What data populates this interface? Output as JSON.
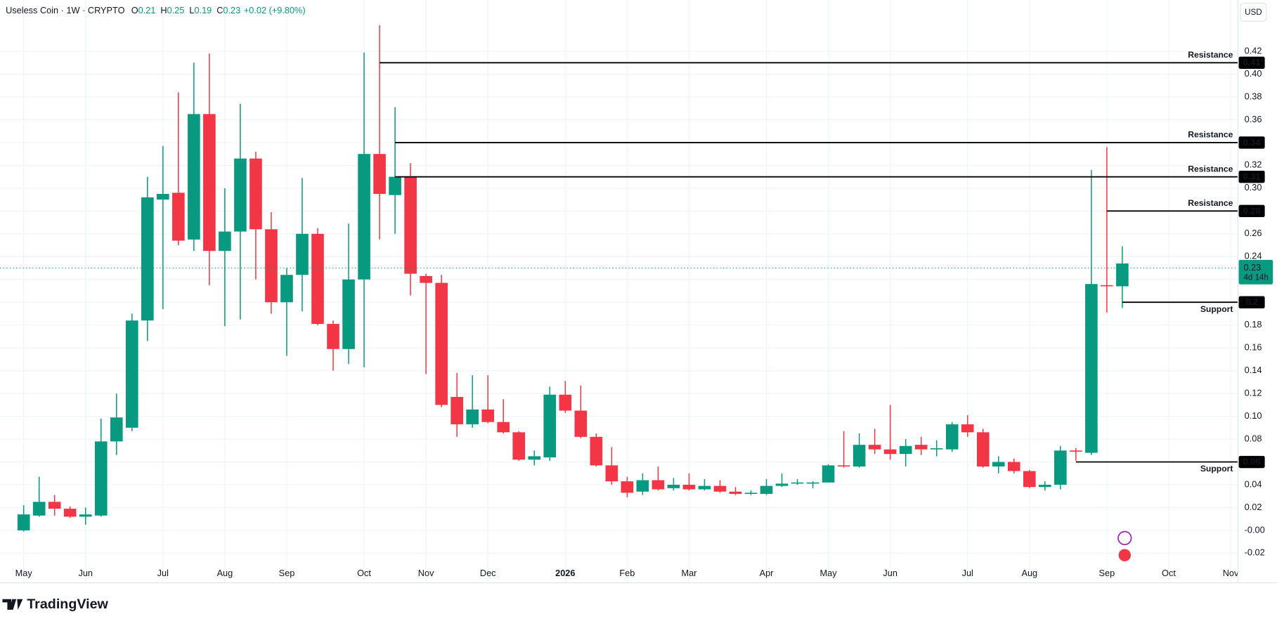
{
  "chart_data": {
    "type": "candlestick",
    "title": "Useless Coin · 1W · CRYPTO",
    "ohlc_legend": [
      {
        "label": "O",
        "value": 0.21
      },
      {
        "label": "H",
        "value": 0.25
      },
      {
        "label": "L",
        "value": 0.19
      },
      {
        "label": "C",
        "value": 0.23
      }
    ],
    "change": "+0.02 (+9.80%)",
    "currency": "USD",
    "brand": "TradingView",
    "up_color": "#089981",
    "down_color": "#f23645",
    "x": [
      0,
      1,
      2,
      3,
      4,
      5,
      6,
      7,
      8,
      9,
      10,
      11,
      12,
      13,
      14,
      15,
      16,
      17,
      18,
      19,
      20,
      21,
      22,
      23,
      24,
      25,
      26,
      27,
      28,
      29,
      30,
      31,
      32,
      33,
      34,
      35,
      36,
      37,
      38,
      39,
      40,
      41,
      42,
      43,
      44,
      45,
      46,
      47,
      48,
      49,
      50,
      51,
      52,
      53,
      54,
      55,
      56,
      57,
      58,
      59,
      60,
      61,
      62,
      63,
      64,
      65,
      66,
      67,
      68,
      69,
      70,
      71
    ],
    "open": [
      0.0,
      0.013,
      0.025,
      0.019,
      0.012,
      0.013,
      0.078,
      0.09,
      0.184,
      0.29,
      0.296,
      0.255,
      0.365,
      0.245,
      0.262,
      0.326,
      0.264,
      0.2,
      0.224,
      0.26,
      0.181,
      0.159,
      0.22,
      0.33,
      0.294,
      0.31,
      0.223,
      0.217,
      0.117,
      0.093,
      0.106,
      0.095,
      0.086,
      0.062,
      0.064,
      0.119,
      0.105,
      0.082,
      0.057,
      0.043,
      0.034,
      0.044,
      0.037,
      0.04,
      0.036,
      0.039,
      0.034,
      0.032,
      0.032,
      0.039,
      0.041,
      0.041,
      0.042,
      0.057,
      0.056,
      0.075,
      0.071,
      0.067,
      0.075,
      0.071,
      0.071,
      0.093,
      0.086,
      0.056,
      0.06,
      0.052,
      0.038,
      0.04,
      0.07,
      0.068,
      0.215,
      0.214
    ],
    "high": [
      0.022,
      0.047,
      0.031,
      0.021,
      0.02,
      0.098,
      0.12,
      0.19,
      0.31,
      0.337,
      0.384,
      0.41,
      0.418,
      0.3,
      0.374,
      0.332,
      0.279,
      0.23,
      0.309,
      0.265,
      0.184,
      0.269,
      0.419,
      0.443,
      0.371,
      0.322,
      0.225,
      0.224,
      0.138,
      0.136,
      0.136,
      0.115,
      0.087,
      0.07,
      0.126,
      0.131,
      0.127,
      0.085,
      0.073,
      0.047,
      0.05,
      0.056,
      0.046,
      0.05,
      0.045,
      0.044,
      0.038,
      0.035,
      0.045,
      0.05,
      0.045,
      0.043,
      0.058,
      0.087,
      0.085,
      0.089,
      0.11,
      0.08,
      0.082,
      0.079,
      0.095,
      0.101,
      0.089,
      0.065,
      0.063,
      0.053,
      0.043,
      0.074,
      0.072,
      0.316,
      0.336,
      0.249
    ],
    "low": [
      -0.001,
      0.012,
      0.013,
      0.011,
      0.005,
      0.012,
      0.066,
      0.087,
      0.166,
      0.194,
      0.25,
      0.245,
      0.215,
      0.179,
      0.185,
      0.22,
      0.19,
      0.153,
      0.192,
      0.18,
      0.14,
      0.146,
      0.143,
      0.255,
      0.26,
      0.206,
      0.137,
      0.108,
      0.082,
      0.09,
      0.094,
      0.085,
      0.061,
      0.057,
      0.061,
      0.103,
      0.081,
      0.056,
      0.04,
      0.029,
      0.031,
      0.035,
      0.035,
      0.035,
      0.035,
      0.033,
      0.031,
      0.031,
      0.031,
      0.038,
      0.04,
      0.037,
      0.042,
      0.055,
      0.055,
      0.067,
      0.062,
      0.056,
      0.066,
      0.065,
      0.069,
      0.082,
      0.055,
      0.05,
      0.05,
      0.037,
      0.035,
      0.036,
      0.061,
      0.066,
      0.191,
      0.195
    ],
    "close": [
      0.014,
      0.025,
      0.019,
      0.012,
      0.014,
      0.078,
      0.099,
      0.184,
      0.292,
      0.295,
      0.254,
      0.365,
      0.245,
      0.262,
      0.326,
      0.264,
      0.2,
      0.224,
      0.26,
      0.181,
      0.159,
      0.22,
      0.33,
      0.295,
      0.31,
      0.225,
      0.217,
      0.11,
      0.093,
      0.106,
      0.095,
      0.086,
      0.062,
      0.065,
      0.119,
      0.105,
      0.082,
      0.057,
      0.043,
      0.033,
      0.044,
      0.036,
      0.04,
      0.036,
      0.039,
      0.034,
      0.032,
      0.033,
      0.039,
      0.041,
      0.042,
      0.042,
      0.057,
      0.056,
      0.075,
      0.071,
      0.067,
      0.074,
      0.071,
      0.072,
      0.093,
      0.086,
      0.056,
      0.06,
      0.052,
      0.038,
      0.04,
      0.07,
      0.069,
      0.216,
      0.214,
      0.234
    ],
    "xlim": [
      -1.53,
      78.47
    ],
    "xticks": [
      {
        "value": 0,
        "label": "May"
      },
      {
        "value": 4,
        "label": "Jun"
      },
      {
        "value": 9,
        "label": "Jul"
      },
      {
        "value": 13,
        "label": "Aug"
      },
      {
        "value": 17,
        "label": "Sep"
      },
      {
        "value": 22,
        "label": "Oct"
      },
      {
        "value": 26,
        "label": "Nov"
      },
      {
        "value": 30,
        "label": "Dec"
      },
      {
        "value": 35,
        "label": "2026"
      },
      {
        "value": 39,
        "label": "Feb"
      },
      {
        "value": 43,
        "label": "Mar"
      },
      {
        "value": 48,
        "label": "Apr"
      },
      {
        "value": 52,
        "label": "May"
      },
      {
        "value": 56,
        "label": "Jun"
      },
      {
        "value": 61,
        "label": "Jul"
      },
      {
        "value": 65,
        "label": "Aug"
      },
      {
        "value": 70,
        "label": "Sep"
      },
      {
        "value": 74,
        "label": "Oct"
      },
      {
        "value": 78,
        "label": "Nov"
      }
    ],
    "ylim": [
      -0.046,
      0.465
    ],
    "yticks": [
      {
        "value": -0.02,
        "label": "-0.02"
      },
      {
        "value": 0,
        "label": "-0.00"
      },
      {
        "value": 0.02,
        "label": "0.02"
      },
      {
        "value": 0.04,
        "label": "0.04"
      },
      {
        "value": 0.06,
        "label": "0.06"
      },
      {
        "value": 0.08,
        "label": "0.08"
      },
      {
        "value": 0.1,
        "label": "0.10"
      },
      {
        "value": 0.12,
        "label": "0.12"
      },
      {
        "value": 0.14,
        "label": "0.14"
      },
      {
        "value": 0.16,
        "label": "0.16"
      },
      {
        "value": 0.18,
        "label": "0.18"
      },
      {
        "value": 0.2,
        "label": "0.20"
      },
      {
        "value": 0.22,
        "label": "0.22"
      },
      {
        "value": 0.24,
        "label": "0.24"
      },
      {
        "value": 0.26,
        "label": "0.26"
      },
      {
        "value": 0.28,
        "label": "0.28"
      },
      {
        "value": 0.3,
        "label": "0.30"
      },
      {
        "value": 0.32,
        "label": "0.32"
      },
      {
        "value": 0.34,
        "label": "0.34"
      },
      {
        "value": 0.36,
        "label": "0.36"
      },
      {
        "value": 0.38,
        "label": "0.38"
      },
      {
        "value": 0.4,
        "label": "0.40"
      },
      {
        "value": 0.42,
        "label": "0.42"
      }
    ],
    "grid": true,
    "levels": [
      {
        "label": "Resistance",
        "value": 0.41,
        "start": 23
      },
      {
        "label": "Resistance",
        "value": 0.34,
        "start": 24
      },
      {
        "label": "Resistance",
        "value": 0.31,
        "start": 24
      },
      {
        "label": "Resistance",
        "value": 0.28,
        "start": 70
      },
      {
        "label": "Support",
        "value": 0.2,
        "start": 71
      },
      {
        "label": "Support",
        "value": 0.06,
        "start": 68
      }
    ],
    "last_price": 0.23,
    "countdown": "4d 14h"
  }
}
